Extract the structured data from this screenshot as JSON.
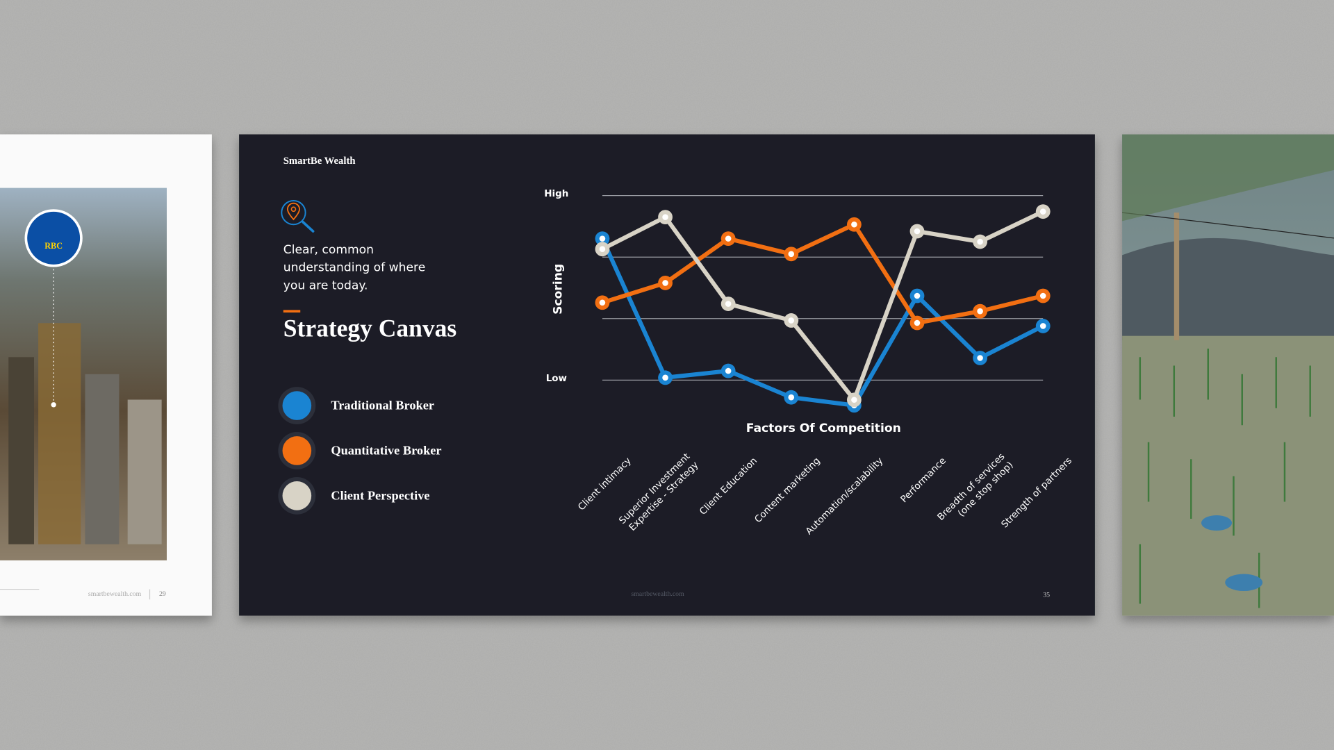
{
  "left_slide": {
    "logo": "RBC",
    "footer": "smartbewealth.com",
    "page": "29"
  },
  "slide": {
    "brand": "SmartBe Wealth",
    "tagline": [
      "Clear, common",
      "understanding of where",
      "you are today."
    ],
    "heading": "Strategy Canvas",
    "footer": "smartbewealth.com",
    "page": "35"
  },
  "chart_data": {
    "type": "line",
    "xlabel": "Factors Of Competition",
    "ylabel": "Scoring",
    "categories": [
      "Client intimacy",
      "Superior Investment\nExpertise - Strategy",
      "Client Education",
      "Content marketing",
      "Automation/scalability",
      "Performance",
      "Breadth of services\n(one stop shop)",
      "Strength of partners"
    ],
    "series": [
      {
        "name": "Traditional Broker",
        "color": "#1a84d2",
        "values": [
          2.3,
          0.04,
          0.15,
          -0.28,
          -0.41,
          1.37,
          0.36,
          0.88
        ]
      },
      {
        "name": "Quantitative Broker",
        "color": "#f26f12",
        "values": [
          1.26,
          1.58,
          2.3,
          2.05,
          2.53,
          0.93,
          1.12,
          1.37
        ]
      },
      {
        "name": "Client Perspective",
        "color": "#d8d3c6",
        "values": [
          2.13,
          2.65,
          1.24,
          0.97,
          -0.32,
          2.42,
          2.25,
          2.74
        ]
      }
    ],
    "ylim": [
      -0.5,
      3
    ],
    "yticks": [
      {
        "value": 0,
        "label": "Low"
      },
      {
        "value": 3,
        "label": "High"
      }
    ],
    "minor_yticks": [
      1,
      2
    ],
    "grid": true
  }
}
